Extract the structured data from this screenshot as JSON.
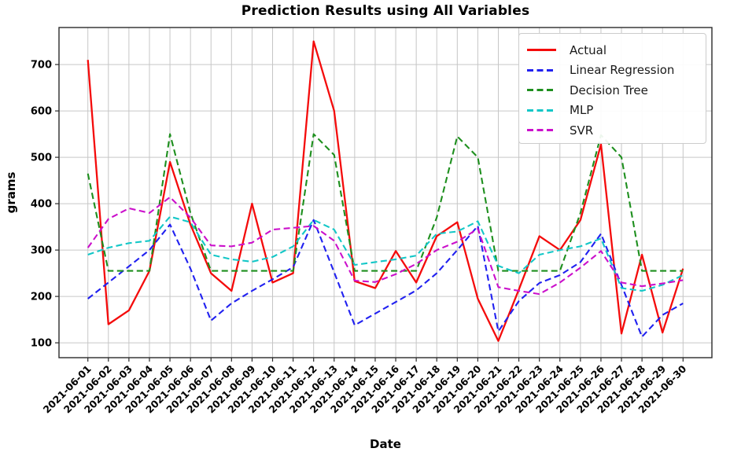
{
  "chart_data": {
    "type": "line",
    "title": "Prediction Results using All Variables",
    "xlabel": "Date",
    "ylabel": "grams",
    "grid": true,
    "legend_position": "upper right",
    "ylim": [
      68,
      780
    ],
    "yticks": [
      100,
      200,
      300,
      400,
      500,
      600,
      700
    ],
    "x": [
      "2021-06-01",
      "2021-06-02",
      "2021-06-03",
      "2021-06-04",
      "2021-06-05",
      "2021-06-06",
      "2021-06-07",
      "2021-06-08",
      "2021-06-09",
      "2021-06-10",
      "2021-06-11",
      "2021-06-12",
      "2021-06-13",
      "2021-06-14",
      "2021-06-15",
      "2021-06-16",
      "2021-06-17",
      "2021-06-18",
      "2021-06-19",
      "2021-06-20",
      "2021-06-21",
      "2021-06-22",
      "2021-06-23",
      "2021-06-24",
      "2021-06-25",
      "2021-06-26",
      "2021-06-27",
      "2021-06-28",
      "2021-06-29",
      "2021-06-30"
    ],
    "series": [
      {
        "name": "Actual",
        "color": "#f40b0b",
        "style": "solid",
        "values": [
          710,
          140,
          170,
          255,
          490,
          355,
          250,
          212,
          400,
          230,
          250,
          750,
          600,
          233,
          218,
          298,
          230,
          330,
          360,
          195,
          104,
          215,
          330,
          300,
          365,
          528,
          120,
          290,
          122,
          260
        ]
      },
      {
        "name": "Linear Regression",
        "color": "#2121f0",
        "style": "dashed",
        "values": [
          195,
          230,
          265,
          300,
          355,
          260,
          148,
          185,
          212,
          237,
          263,
          365,
          252,
          138,
          163,
          188,
          213,
          250,
          300,
          352,
          125,
          190,
          229,
          246,
          274,
          335,
          225,
          113,
          160,
          185
        ]
      },
      {
        "name": "Decision Tree",
        "color": "#1e8f1e",
        "style": "dashed",
        "values": [
          465,
          255,
          255,
          255,
          550,
          380,
          255,
          255,
          255,
          255,
          255,
          550,
          505,
          255,
          255,
          255,
          255,
          370,
          545,
          500,
          255,
          255,
          255,
          255,
          380,
          548,
          500,
          255,
          255,
          255
        ]
      },
      {
        "name": "MLP",
        "color": "#13c7c7",
        "style": "dashed",
        "values": [
          290,
          305,
          315,
          320,
          372,
          360,
          290,
          280,
          275,
          285,
          308,
          365,
          344,
          268,
          274,
          280,
          288,
          335,
          340,
          362,
          266,
          250,
          290,
          300,
          308,
          325,
          218,
          212,
          225,
          246
        ]
      },
      {
        "name": "SVR",
        "color": "#cb10cb",
        "style": "dashed",
        "values": [
          305,
          367,
          390,
          380,
          414,
          370,
          310,
          308,
          316,
          344,
          348,
          352,
          320,
          234,
          231,
          248,
          270,
          300,
          318,
          346,
          220,
          212,
          205,
          230,
          262,
          298,
          230,
          222,
          228,
          235
        ]
      }
    ]
  }
}
